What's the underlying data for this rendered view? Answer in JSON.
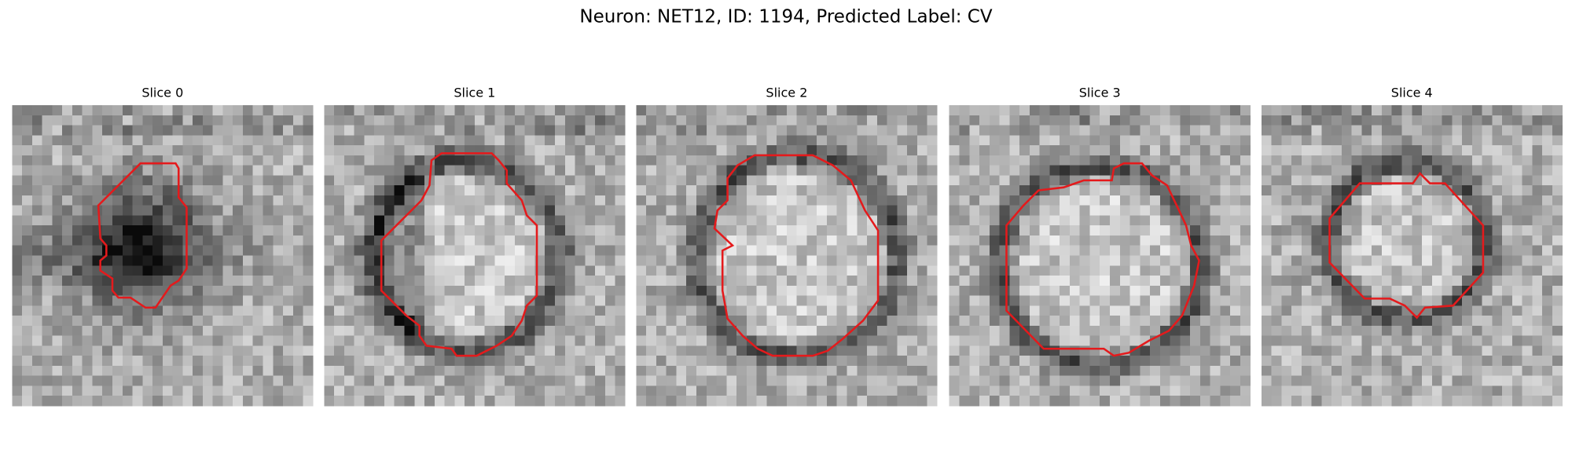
{
  "title": "Neuron: NET12, ID: 1194, Predicted Label: CV",
  "panels": [
    {
      "title": "Slice 0"
    },
    {
      "title": "Slice 1"
    },
    {
      "title": "Slice 2"
    },
    {
      "title": "Slice 3"
    },
    {
      "title": "Slice 4"
    }
  ]
}
